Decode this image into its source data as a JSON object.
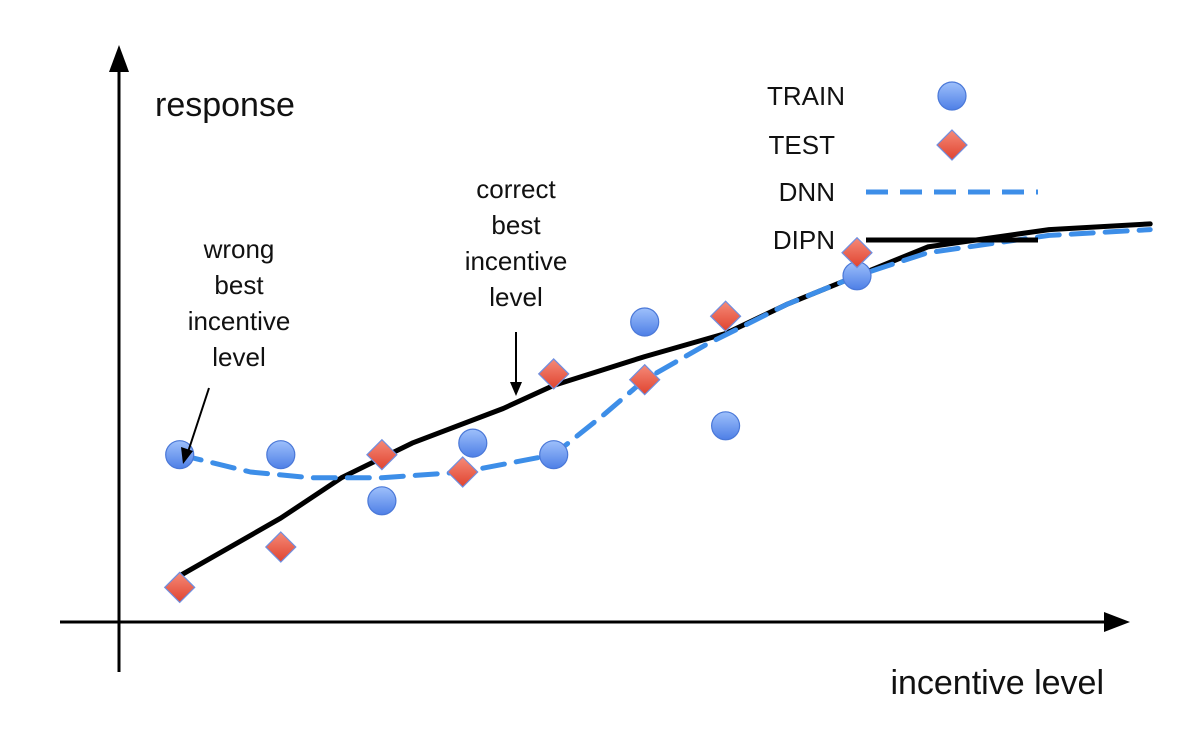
{
  "chart_data": {
    "type": "scatter",
    "xlabel": "incentive level",
    "ylabel": "response",
    "grid": false,
    "axis_ticks": false,
    "legend_position": "top-right",
    "series": [
      {
        "name": "TRAIN",
        "kind": "points",
        "marker": "circle",
        "color": "#5b8def",
        "x": [
          0.06,
          0.16,
          0.26,
          0.35,
          0.43,
          0.52,
          0.6,
          0.73
        ],
        "y": [
          0.29,
          0.29,
          0.21,
          0.31,
          0.29,
          0.52,
          0.34,
          0.6
        ]
      },
      {
        "name": "TEST",
        "kind": "points",
        "marker": "diamond",
        "color": "#e85a4a",
        "x": [
          0.06,
          0.16,
          0.26,
          0.34,
          0.43,
          0.52,
          0.6,
          0.73
        ],
        "y": [
          0.06,
          0.13,
          0.29,
          0.26,
          0.43,
          0.42,
          0.53,
          0.64
        ]
      },
      {
        "name": "DNN",
        "kind": "line",
        "style": "dashed",
        "color": "#3d8ee8",
        "x": [
          0.06,
          0.13,
          0.19,
          0.26,
          0.34,
          0.43,
          0.48,
          0.52,
          0.58,
          0.66,
          0.73,
          0.8,
          0.92,
          1.02
        ],
        "y": [
          0.29,
          0.26,
          0.25,
          0.25,
          0.26,
          0.29,
          0.36,
          0.42,
          0.48,
          0.55,
          0.6,
          0.64,
          0.67,
          0.68
        ]
      },
      {
        "name": "DIPN",
        "kind": "line",
        "style": "solid",
        "color": "#000000",
        "x": [
          0.06,
          0.16,
          0.22,
          0.29,
          0.38,
          0.43,
          0.52,
          0.6,
          0.66,
          0.73,
          0.8,
          0.92,
          1.02
        ],
        "y": [
          0.08,
          0.18,
          0.25,
          0.31,
          0.37,
          0.41,
          0.46,
          0.5,
          0.55,
          0.6,
          0.65,
          0.68,
          0.69
        ]
      }
    ],
    "annotations": [
      {
        "lines": [
          "wrong",
          "best",
          "incentive",
          "level"
        ],
        "points_to": {
          "series": "TRAIN",
          "index": 0
        }
      },
      {
        "lines": [
          "correct",
          "best",
          "incentive",
          "level"
        ],
        "points_to": {
          "series": "TEST",
          "index": 4
        }
      }
    ]
  }
}
